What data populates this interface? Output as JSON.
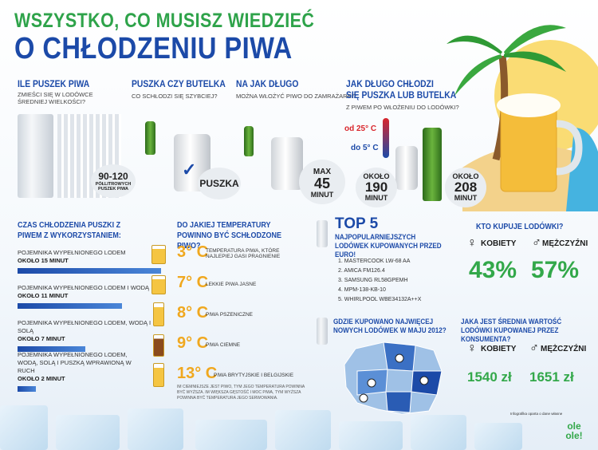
{
  "header": {
    "line1": "WSZYSTKO, CO MUSISZ WIEDZIEĆ",
    "line2": "O CHŁODZENIU PIWA"
  },
  "cans_fridge": {
    "title": "ILE PUSZEK PIWA",
    "subtitle": "ZMIEŚCI SIĘ W LODÓWCE ŚREDNIEJ WIELKOŚCI?",
    "value": "90-120",
    "caption": "PÓŁLITROWYCH PUSZEK PIWA"
  },
  "can_or_bottle": {
    "title": "PUSZKA CZY BUTELKA",
    "subtitle": "CO SCHŁODZI SIĘ SZYBCIEJ?",
    "answer": "PUSZKA"
  },
  "freezer": {
    "title": "NA JAK DŁUGO",
    "subtitle": "MOŻNA WŁOŻYĆ PIWO DO ZAMRAŻARKI?",
    "max_label": "MAX",
    "value": "45",
    "unit": "MINUT"
  },
  "cooling_time": {
    "title1": "JAK DŁUGO CHŁODZI",
    "title2": "SIĘ PUSZKA LUB BUTELKA",
    "subtitle": "Z PIWEM PO WŁOŻENIU DO LODÓWKI?",
    "from": "od 25° C",
    "to": "do 5° C",
    "can_about": "OKOŁO",
    "can_value": "190",
    "can_unit": "MINUT",
    "bottle_about": "OKOŁO",
    "bottle_value": "208",
    "bottle_unit": "MINUT"
  },
  "can_cooling": {
    "title": "CZAS CHŁODZENIA PUSZKI Z PIWEM Z WYKORZYSTANIEM:",
    "rows": [
      {
        "label": "POJEMNIKA WYPEŁNIONEGO LODEM",
        "time": "OKOŁO 15 MINUT",
        "fill": 1.0
      },
      {
        "label": "POJEMNIKA WYPEŁNIONEGO LODEM I WODĄ",
        "time": "OKOŁO 11 MINUT",
        "fill": 0.73
      },
      {
        "label": "POJEMNIKA WYPEŁNIONEGO LODEM, WODĄ I SOLĄ",
        "time": "OKOŁO 7 MINUT",
        "fill": 0.47
      },
      {
        "label": "POJEMNIKA WYPEŁNIONEGO LODEM, WODĄ, SOLĄ I PUSZKĄ WPRAWIONĄ W RUCH",
        "time": "OKOŁO 2 MINUT",
        "fill": 0.13
      }
    ]
  },
  "serving_temp": {
    "title": "DO JAKIEJ TEMPERATURY POWINNO BYĆ SCHŁODZONE PIWO?",
    "rows": [
      {
        "temp": "3° C",
        "label": "TEMPERATURA PIWA, KTÓRE NAJLEPIEJ GASI PRAGNIENIE"
      },
      {
        "temp": "7° C",
        "label": "LEKKIE PIWA JASNE"
      },
      {
        "temp": "8° C",
        "label": "PIWA PSZENICZNE"
      },
      {
        "temp": "9° C",
        "label": "PIWA CIEMNE"
      },
      {
        "temp": "13° C",
        "label": "PIWA BRYTYJSKIE I BELGIJSKIE"
      }
    ],
    "note": "IM CIEMNIEJSZE JEST PIWO, TYM JEGO TEMPERATURA POWINNA BYĆ WYŻSZA. IM WIĘKSZA GĘSTOŚĆ I MOC PIWA, TYM WYŻSZA POWINNA BYĆ TEMPERATURA JEGO SERWOWANIA."
  },
  "top5": {
    "title": "TOP 5",
    "subtitle": "NAJPOPULARNIEJSZYCH LODÓWEK KUPOWANYCH PRZED EURO!",
    "items": [
      "1. MASTERCOOK LW-68 AA",
      "2. AMICA FM126.4",
      "3. SAMSUNG RL58GPEMH",
      "4. MPM-138-KB-10",
      "5. WHIRLPOOL WBE34132A++X"
    ]
  },
  "where": {
    "title": "GDZIE KUPOWANO NAJWIĘCEJ NOWYCH LODÓWEK W MAJU 2012?"
  },
  "buyers": {
    "title": "KTO KUPUJE LODÓWKI?",
    "women_label": "KOBIETY",
    "men_label": "MĘŻCZYŹNI",
    "women_pct": "43%",
    "men_pct": "57%"
  },
  "avg_value": {
    "title": "JAKA JEST ŚREDNIA WARTOŚĆ LODÓWKI KUPOWANEJ PRZEZ KONSUMENTA?",
    "women_label": "KOBIETY",
    "men_label": "MĘŻCZYŹNI",
    "women_value": "1540 zł",
    "men_value": "1651 zł"
  },
  "footer": {
    "source": "Infografika oparta o dane własne",
    "logo": "ole ole!"
  },
  "colors": {
    "green": "#33a84a",
    "blue": "#1c4aa8",
    "orange": "#f0a81f"
  }
}
